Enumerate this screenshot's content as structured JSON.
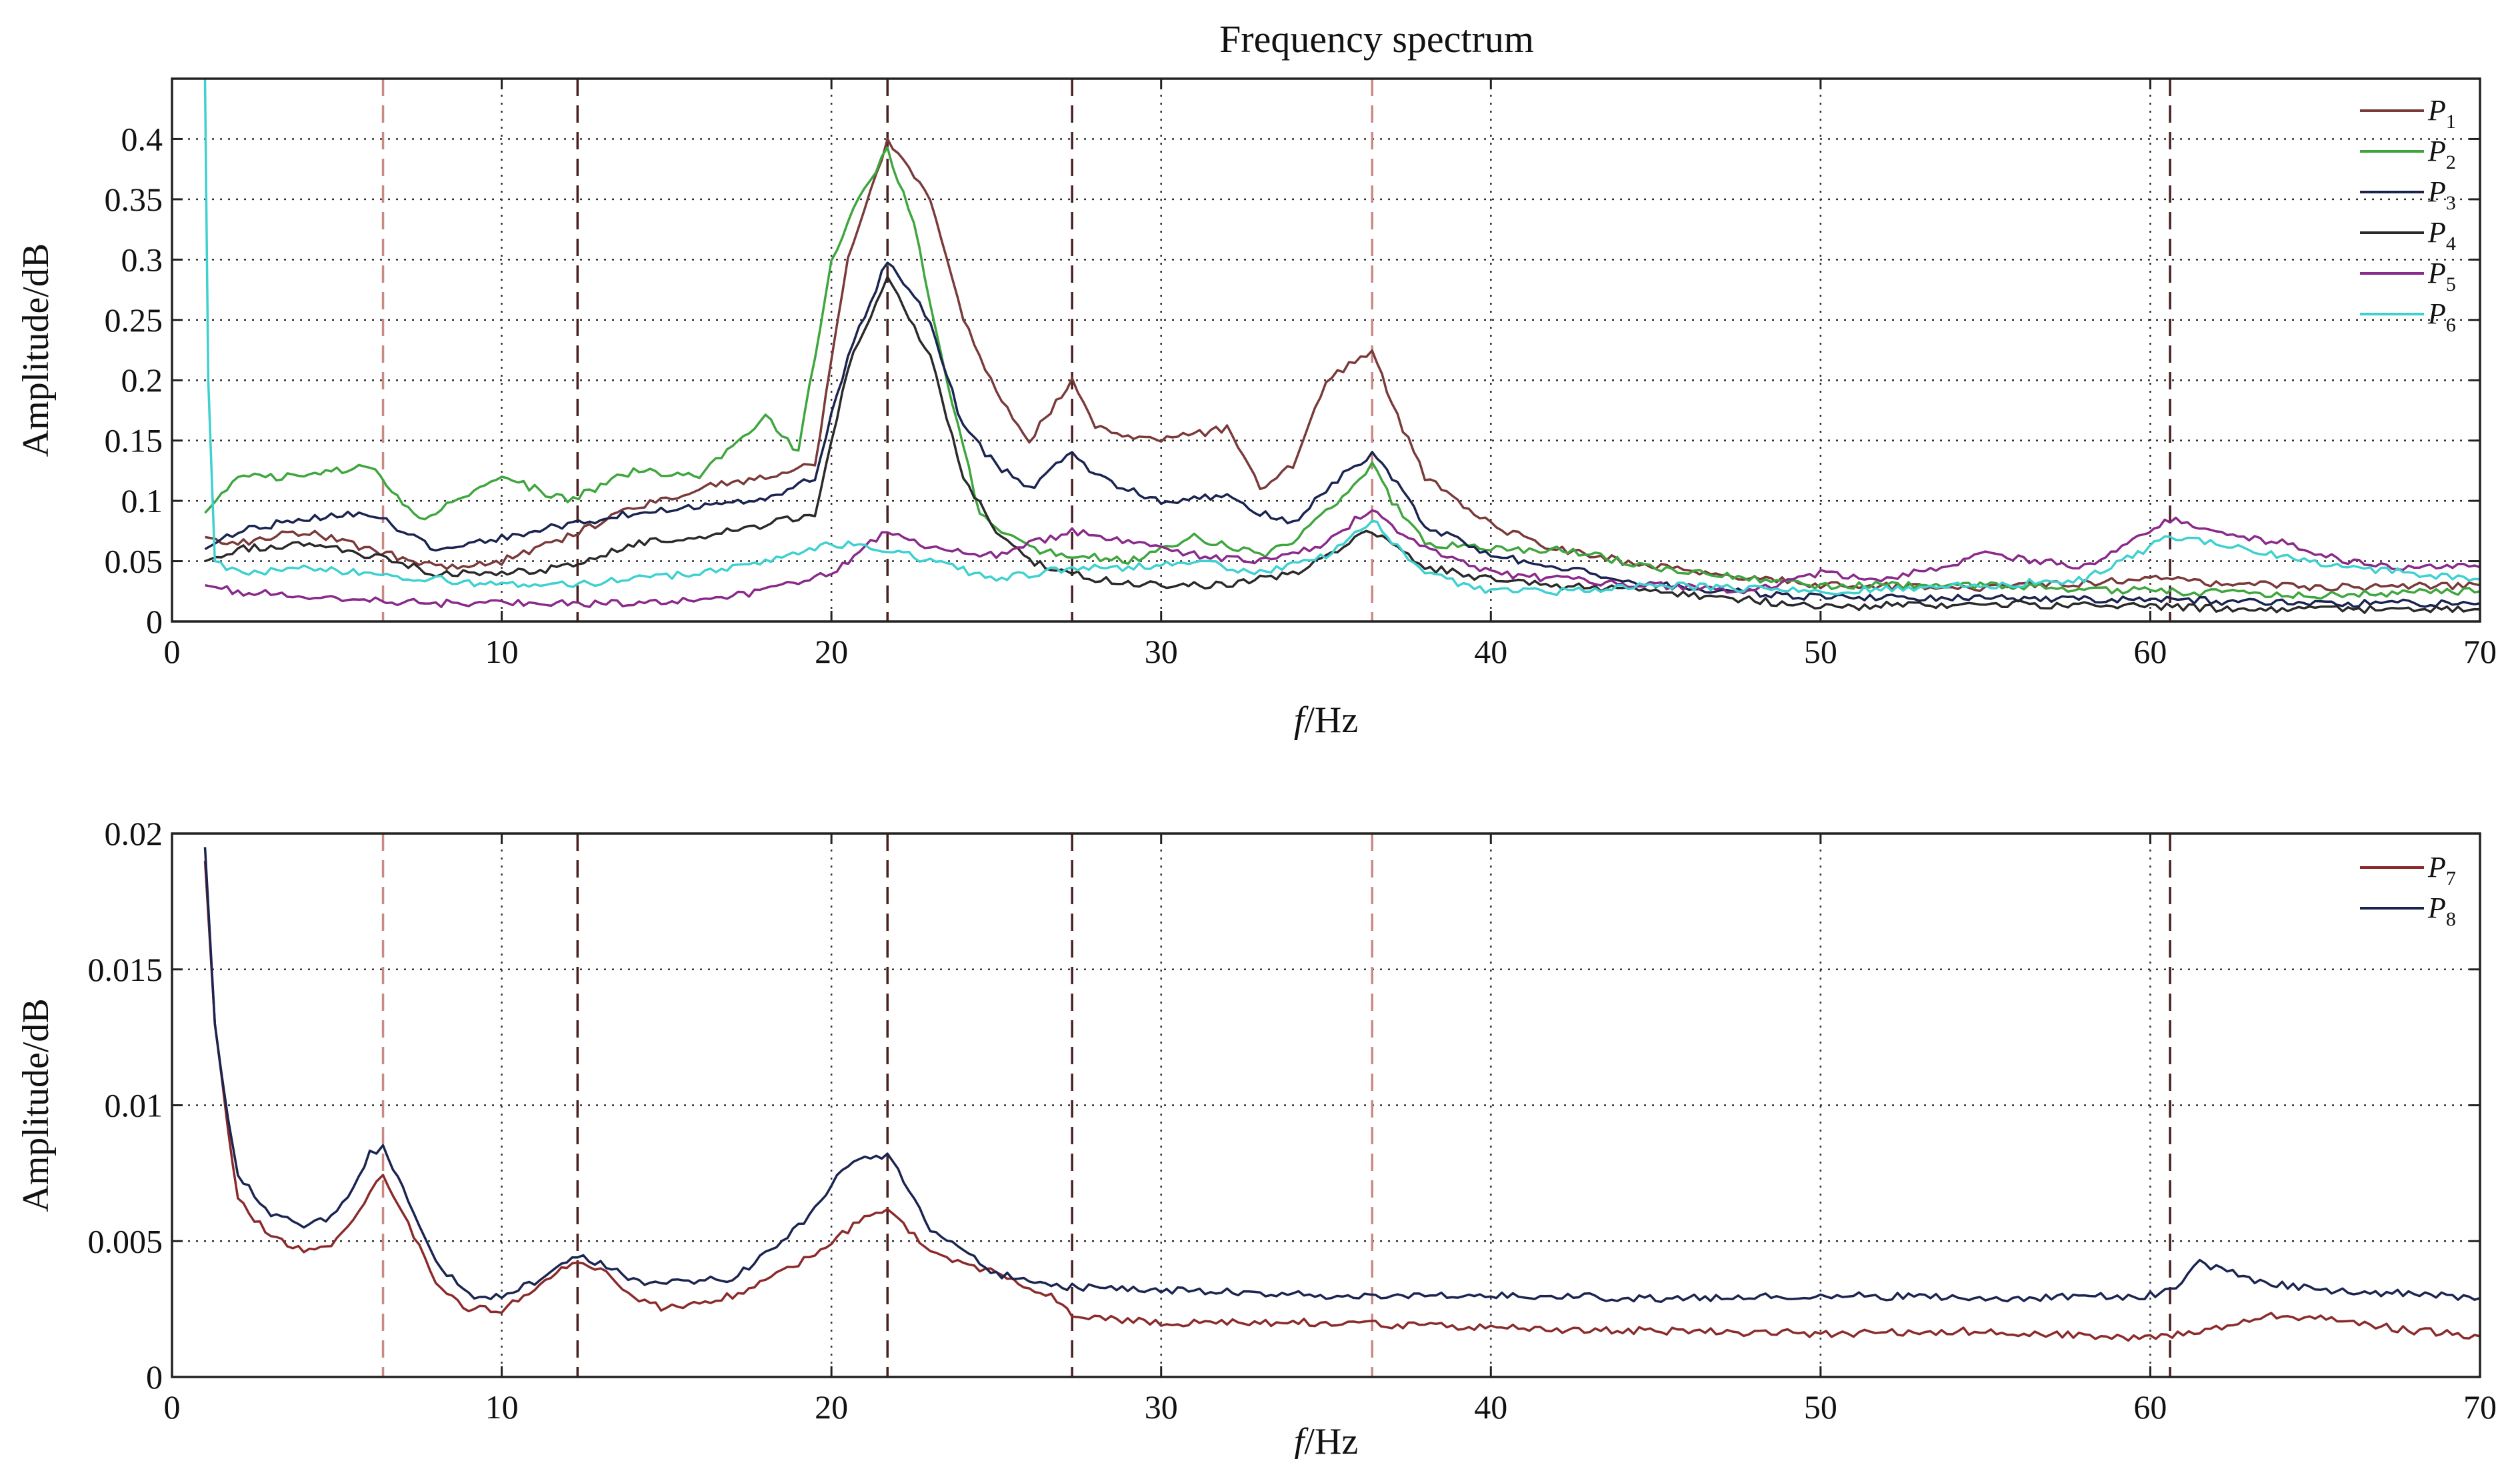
{
  "title": "Frequency spectrum",
  "chart_data": [
    {
      "type": "line",
      "title": "Frequency spectrum",
      "xlabel": "f/Hz",
      "ylabel": "Amplitude/dB",
      "xlim": [
        0,
        70
      ],
      "ylim": [
        0,
        0.45
      ],
      "xticks": [
        0,
        10,
        20,
        30,
        40,
        50,
        60,
        70
      ],
      "yticks": [
        0,
        0.05,
        0.1,
        0.15,
        0.2,
        0.25,
        0.3,
        0.35,
        0.4
      ],
      "ytick_labels": [
        "0",
        "0.05",
        "0.1",
        "0.15",
        "0.2",
        "0.25",
        "0.3",
        "0.35",
        "0.4"
      ],
      "grid": true,
      "legend_position": "top-right",
      "marker_lines": [
        {
          "x": 6.4,
          "color": "#c98a86"
        },
        {
          "x": 12.3,
          "color": "#4a2020"
        },
        {
          "x": 21.7,
          "color": "#4a2020"
        },
        {
          "x": 27.3,
          "color": "#4a2020"
        },
        {
          "x": 36.4,
          "color": "#c98a86"
        },
        {
          "x": 60.6,
          "color": "#4a2020"
        }
      ],
      "series": [
        {
          "name": "P",
          "sub": "1",
          "color": "#7a3a3a",
          "x": [
            1,
            2,
            4,
            6,
            8,
            10,
            12,
            14,
            16,
            18,
            19.5,
            20.5,
            21.7,
            23,
            24,
            25,
            26,
            27.3,
            28,
            30,
            32,
            33,
            34,
            35,
            36.4,
            37,
            38,
            40,
            42,
            45,
            50,
            55,
            60,
            65,
            70
          ],
          "values": [
            0.07,
            0.065,
            0.075,
            0.06,
            0.045,
            0.05,
            0.07,
            0.095,
            0.11,
            0.12,
            0.13,
            0.3,
            0.4,
            0.35,
            0.25,
            0.19,
            0.15,
            0.2,
            0.16,
            0.15,
            0.16,
            0.11,
            0.13,
            0.2,
            0.225,
            0.18,
            0.12,
            0.08,
            0.06,
            0.045,
            0.03,
            0.028,
            0.035,
            0.028,
            0.03
          ]
        },
        {
          "name": "P",
          "sub": "2",
          "color": "#3fa63f",
          "x": [
            1,
            2,
            4,
            6,
            7.5,
            10,
            12,
            14,
            16,
            18,
            19,
            20,
            21,
            21.7,
            22.5,
            23.5,
            24.5,
            26,
            27.3,
            29,
            31,
            33,
            34,
            35,
            36,
            36.4,
            37,
            38,
            40,
            42,
            45,
            50,
            55,
            60,
            65,
            70
          ],
          "values": [
            0.09,
            0.12,
            0.12,
            0.13,
            0.085,
            0.12,
            0.1,
            0.125,
            0.12,
            0.17,
            0.14,
            0.3,
            0.36,
            0.39,
            0.33,
            0.2,
            0.09,
            0.06,
            0.055,
            0.05,
            0.07,
            0.055,
            0.065,
            0.09,
            0.115,
            0.13,
            0.1,
            0.065,
            0.06,
            0.06,
            0.045,
            0.03,
            0.03,
            0.025,
            0.022,
            0.025
          ]
        },
        {
          "name": "P",
          "sub": "3",
          "color": "#1b2450",
          "x": [
            1,
            2,
            4,
            6,
            8,
            10,
            12,
            14,
            16,
            18,
            19.5,
            20.5,
            21.7,
            23,
            24,
            25,
            26,
            27.3,
            28,
            30,
            32,
            33,
            34,
            35,
            36.4,
            37,
            38,
            40,
            42,
            45,
            50,
            55,
            60,
            65,
            70
          ],
          "values": [
            0.06,
            0.075,
            0.085,
            0.09,
            0.06,
            0.07,
            0.08,
            0.09,
            0.095,
            0.1,
            0.12,
            0.22,
            0.3,
            0.25,
            0.16,
            0.13,
            0.11,
            0.14,
            0.12,
            0.1,
            0.105,
            0.09,
            0.08,
            0.11,
            0.14,
            0.12,
            0.08,
            0.055,
            0.045,
            0.03,
            0.02,
            0.02,
            0.018,
            0.015,
            0.015
          ]
        },
        {
          "name": "P",
          "sub": "4",
          "color": "#2a2a2a",
          "x": [
            1,
            2,
            4,
            6,
            8,
            10,
            12,
            14,
            16,
            18,
            19.5,
            20.5,
            21.7,
            23,
            24,
            25,
            26,
            27.3,
            28,
            30,
            32,
            34,
            35,
            36.4,
            37,
            38,
            40,
            42,
            45,
            50,
            55,
            60,
            65,
            70
          ],
          "values": [
            0.05,
            0.06,
            0.065,
            0.055,
            0.04,
            0.04,
            0.045,
            0.065,
            0.07,
            0.08,
            0.09,
            0.21,
            0.285,
            0.22,
            0.12,
            0.075,
            0.05,
            0.04,
            0.035,
            0.03,
            0.03,
            0.04,
            0.055,
            0.075,
            0.065,
            0.045,
            0.035,
            0.03,
            0.025,
            0.012,
            0.015,
            0.012,
            0.01,
            0.01
          ]
        },
        {
          "name": "P",
          "sub": "5",
          "color": "#8a2a8a",
          "x": [
            1,
            2,
            4,
            6,
            8,
            10,
            12,
            14,
            16,
            18,
            20,
            21.7,
            23,
            25,
            27.3,
            29,
            31,
            33,
            35,
            36.4,
            37,
            38,
            40,
            42,
            45,
            48,
            50,
            52,
            55,
            58,
            60.6,
            62,
            64,
            66,
            68,
            70
          ],
          "values": [
            0.03,
            0.025,
            0.02,
            0.018,
            0.015,
            0.015,
            0.015,
            0.015,
            0.018,
            0.025,
            0.04,
            0.075,
            0.06,
            0.055,
            0.075,
            0.065,
            0.055,
            0.05,
            0.065,
            0.095,
            0.08,
            0.06,
            0.04,
            0.035,
            0.03,
            0.025,
            0.04,
            0.035,
            0.055,
            0.045,
            0.085,
            0.075,
            0.065,
            0.05,
            0.045,
            0.045
          ]
        },
        {
          "name": "P",
          "sub": "6",
          "color": "#3fd0d0",
          "x": [
            1,
            1.1,
            1.3,
            2,
            4,
            6,
            8,
            10,
            12,
            14,
            16,
            18,
            20,
            21.7,
            23,
            25,
            27.3,
            29,
            31,
            33,
            35,
            36.4,
            37,
            38,
            40,
            42,
            45,
            50,
            55,
            58,
            60.6,
            62,
            64,
            66,
            68,
            70
          ],
          "values": [
            0.45,
            0.2,
            0.05,
            0.04,
            0.045,
            0.04,
            0.035,
            0.03,
            0.03,
            0.035,
            0.04,
            0.05,
            0.065,
            0.06,
            0.05,
            0.035,
            0.045,
            0.045,
            0.05,
            0.04,
            0.055,
            0.085,
            0.065,
            0.04,
            0.025,
            0.025,
            0.03,
            0.025,
            0.03,
            0.035,
            0.07,
            0.065,
            0.055,
            0.045,
            0.04,
            0.035
          ]
        }
      ]
    },
    {
      "type": "line",
      "title": "",
      "xlabel": "f/Hz",
      "ylabel": "Amplitude/dB",
      "xlim": [
        0,
        70
      ],
      "ylim": [
        0,
        0.02
      ],
      "xticks": [
        0,
        10,
        20,
        30,
        40,
        50,
        60,
        70
      ],
      "yticks": [
        0,
        0.005,
        0.01,
        0.015,
        0.02
      ],
      "ytick_labels": [
        "0",
        "0.005",
        "0.01",
        "0.015",
        "0.02"
      ],
      "grid": true,
      "legend_position": "top-right",
      "marker_lines": [
        {
          "x": 6.4,
          "color": "#c98a86"
        },
        {
          "x": 12.3,
          "color": "#4a2020"
        },
        {
          "x": 21.7,
          "color": "#4a2020"
        },
        {
          "x": 27.3,
          "color": "#4a2020"
        },
        {
          "x": 36.4,
          "color": "#c98a86"
        },
        {
          "x": 60.6,
          "color": "#4a2020"
        }
      ],
      "series": [
        {
          "name": "P",
          "sub": "7",
          "color": "#8a2a2a",
          "x": [
            1,
            1.3,
            1.7,
            2,
            3,
            4,
            5,
            6,
            6.4,
            7,
            8,
            9,
            10,
            11,
            12.3,
            13,
            14,
            15,
            17,
            19,
            21,
            21.7,
            23,
            25,
            27,
            27.3,
            30,
            35,
            40,
            45,
            50,
            55,
            60,
            62,
            64,
            66,
            68,
            70
          ],
          "values": [
            0.019,
            0.013,
            0.009,
            0.0065,
            0.0052,
            0.0046,
            0.005,
            0.0068,
            0.0073,
            0.006,
            0.0035,
            0.0025,
            0.0025,
            0.0033,
            0.0043,
            0.004,
            0.003,
            0.0025,
            0.003,
            0.0042,
            0.0058,
            0.0063,
            0.0045,
            0.0038,
            0.0028,
            0.0022,
            0.002,
            0.002,
            0.0018,
            0.0017,
            0.0016,
            0.0017,
            0.0014,
            0.0018,
            0.0023,
            0.002,
            0.0017,
            0.0015
          ]
        },
        {
          "name": "P",
          "sub": "8",
          "color": "#1b2450",
          "x": [
            1,
            1.3,
            1.7,
            2,
            3,
            4,
            5,
            6,
            6.4,
            7,
            8,
            9,
            10,
            11,
            12.3,
            13,
            14,
            15,
            17,
            19,
            20.5,
            21.7,
            23,
            25,
            27,
            27.3,
            30,
            35,
            40,
            45,
            50,
            55,
            60,
            60.6,
            61.5,
            63,
            65,
            67,
            70
          ],
          "values": [
            0.0195,
            0.013,
            0.0095,
            0.0075,
            0.006,
            0.0055,
            0.006,
            0.0082,
            0.0085,
            0.007,
            0.0042,
            0.003,
            0.003,
            0.0035,
            0.0044,
            0.0042,
            0.0035,
            0.0035,
            0.0036,
            0.0055,
            0.0078,
            0.0082,
            0.0055,
            0.0038,
            0.0033,
            0.0033,
            0.0032,
            0.003,
            0.003,
            0.0029,
            0.003,
            0.0029,
            0.003,
            0.0032,
            0.0042,
            0.0036,
            0.0032,
            0.0031,
            0.0029
          ]
        }
      ]
    }
  ]
}
